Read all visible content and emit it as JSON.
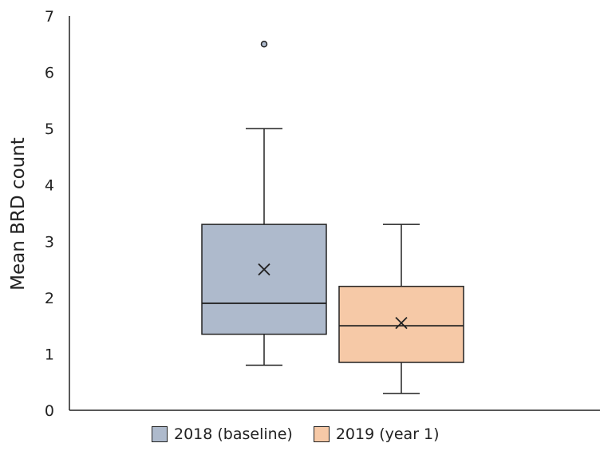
{
  "chart_data": {
    "type": "box",
    "ylabel": "Mean BRD count",
    "xlabel": "",
    "ylim": [
      0,
      7
    ],
    "yticks": [
      0,
      1,
      2,
      3,
      4,
      5,
      6,
      7
    ],
    "grid": false,
    "legend_position": "bottom",
    "series": [
      {
        "name": "2018 (baseline)",
        "color": "#aebacc",
        "min": 0.8,
        "q1": 1.35,
        "median": 1.9,
        "q3": 3.3,
        "max": 5.0,
        "mean": 2.5,
        "outliers": [
          6.5
        ]
      },
      {
        "name": "2019 (year 1)",
        "color": "#f6c9a7",
        "min": 0.3,
        "q1": 0.85,
        "median": 1.5,
        "q3": 2.2,
        "max": 3.3,
        "mean": 1.55,
        "outliers": []
      }
    ]
  }
}
